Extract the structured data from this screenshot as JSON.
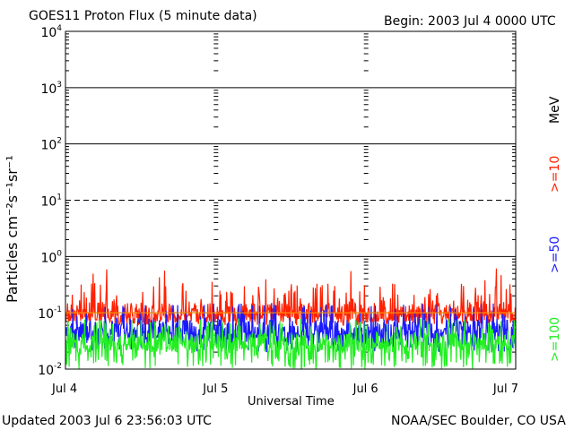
{
  "header": {
    "title": "GOES11 Proton Flux (5 minute data)",
    "begin": "Begin: 2003 Jul 4 0000 UTC"
  },
  "footer": {
    "updated": "Updated 2003 Jul  6 23:56:03 UTC",
    "credit": "NOAA/SEC Boulder, CO USA"
  },
  "chart_data": {
    "type": "line",
    "title": "GOES11 Proton Flux (5 minute data)",
    "xlabel": "Universal Time",
    "ylabel": "Particles cm⁻²s⁻¹sr⁻¹",
    "yscale": "log",
    "ylim": [
      0.01,
      10000
    ],
    "xlim": [
      "2003-07-04 00:00",
      "2003-07-07 00:00"
    ],
    "x_ticks": [
      "Jul 4",
      "Jul 5",
      "Jul 6",
      "Jul 7"
    ],
    "y_ticks": [
      {
        "base": "10",
        "exp": "-2",
        "value": 0.01
      },
      {
        "base": "10",
        "exp": "-1",
        "value": 0.1
      },
      {
        "base": "10",
        "exp": "0",
        "value": 1
      },
      {
        "base": "10",
        "exp": "1",
        "value": 10
      },
      {
        "base": "10",
        "exp": "2",
        "value": 100
      },
      {
        "base": "10",
        "exp": "3",
        "value": 1000
      },
      {
        "base": "10",
        "exp": "4",
        "value": 10000
      }
    ],
    "threshold_lines": [
      {
        "value": 10,
        "style": "dashed"
      },
      {
        "value": 0.1,
        "style": "solid",
        "color": "#ffa500"
      }
    ],
    "right_labels": {
      "unit": "MeV"
    },
    "series": [
      {
        "name": ">=10",
        "color": "#ff2000",
        "baseline": 0.1,
        "typical_range": [
          0.06,
          0.35
        ],
        "max": 0.62
      },
      {
        "name": ">=50",
        "color": "#1a1aff",
        "baseline": 0.05,
        "typical_range": [
          0.02,
          0.15
        ],
        "max": 0.17
      },
      {
        "name": ">=100",
        "color": "#22ee22",
        "baseline": 0.03,
        "typical_range": [
          0.01,
          0.08
        ],
        "max": 0.1
      }
    ]
  }
}
